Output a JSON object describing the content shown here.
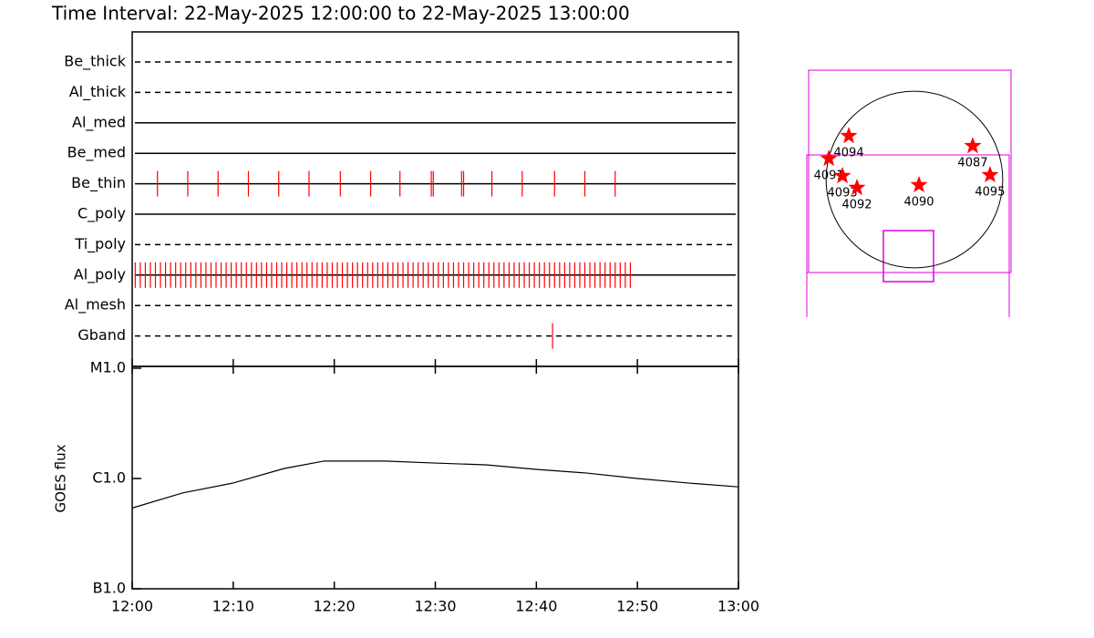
{
  "chart_data": [
    {
      "type": "timeline",
      "title": "Time Interval: 22-May-2025 12:00:00 to 22-May-2025 13:00:00",
      "categories": [
        "Be_thick",
        "Al_thick",
        "Al_med",
        "Be_med",
        "Be_thin",
        "C_poly",
        "Ti_poly",
        "Al_poly",
        "Al_mesh",
        "Gband"
      ],
      "line_styles": [
        "dashed",
        "dashed",
        "solid",
        "solid",
        "solid",
        "solid",
        "dashed",
        "solid",
        "dashed",
        "dashed"
      ],
      "color": "#ff0000",
      "xlim": [
        0,
        60
      ],
      "xticks": [
        0,
        10,
        20,
        30,
        40,
        50,
        60
      ],
      "events": [
        [],
        [],
        [],
        [],
        [
          2.5,
          5.5,
          8.5,
          11.5,
          14.5,
          17.5,
          20.6,
          23.6,
          26.5,
          29.6,
          29.8,
          32.6,
          32.8,
          35.6,
          38.6,
          41.8,
          44.8,
          47.8
        ],
        [],
        [],
        [
          0.3,
          0.8,
          1.3,
          1.8,
          2.3,
          2.8,
          3.3,
          3.8,
          4.3,
          4.8,
          5.3,
          5.8,
          6.3,
          6.8,
          7.3,
          7.8,
          8.3,
          8.8,
          9.3,
          9.8,
          10.3,
          10.8,
          11.3,
          11.8,
          12.3,
          12.8,
          13.3,
          13.8,
          14.3,
          14.8,
          15.3,
          15.8,
          16.3,
          16.8,
          17.3,
          17.8,
          18.3,
          18.8,
          19.3,
          19.8,
          20.3,
          20.8,
          21.3,
          21.8,
          22.3,
          22.8,
          23.3,
          23.8,
          24.3,
          24.8,
          25.3,
          25.8,
          26.3,
          26.8,
          27.3,
          27.8,
          28.3,
          28.8,
          29.3,
          29.8,
          30.3,
          30.8,
          31.3,
          31.8,
          32.3,
          32.8,
          33.3,
          33.8,
          34.3,
          34.8,
          35.3,
          35.8,
          36.3,
          36.8,
          37.3,
          37.8,
          38.3,
          38.8,
          39.3,
          39.8,
          40.3,
          40.8,
          41.3,
          41.8,
          42.3,
          42.8,
          43.3,
          43.8,
          44.3,
          44.8,
          45.3,
          45.8,
          46.3,
          46.8,
          47.3,
          47.8,
          48.3,
          48.8,
          49.3
        ],
        [],
        [
          41.6
        ]
      ]
    },
    {
      "type": "line",
      "ylabel": "GOES flux",
      "log_scale": true,
      "color": "#000000",
      "x": [
        0,
        5,
        10,
        15,
        19,
        25,
        30,
        35,
        40,
        45,
        50,
        55,
        60
      ],
      "values": [
        5.4e-07,
        7.4e-07,
        9.1e-07,
        1.23e-06,
        1.44e-06,
        1.44e-06,
        1.38e-06,
        1.33e-06,
        1.21e-06,
        1.12e-06,
        1e-06,
        9.1e-07,
        8.4e-07
      ],
      "xlim": [
        0,
        60
      ],
      "xticks": [
        {
          "value": 0,
          "label": "12:00"
        },
        {
          "value": 10,
          "label": "12:10"
        },
        {
          "value": 20,
          "label": "12:20"
        },
        {
          "value": 30,
          "label": "12:30"
        },
        {
          "value": 40,
          "label": "12:40"
        },
        {
          "value": 50,
          "label": "12:50"
        },
        {
          "value": 60,
          "label": "13:00"
        }
      ],
      "ylim": [
        1e-07,
        1e-05
      ],
      "yticks": [
        {
          "value": 1e-07,
          "label": "B1.0"
        },
        {
          "value": 1e-06,
          "label": "C1.0"
        },
        {
          "value": 1e-05,
          "label": "M1.0"
        }
      ]
    },
    {
      "type": "scatter",
      "marker": "star",
      "color": "#ff0000",
      "disk_radius": 960,
      "xlim": [
        -1100,
        1100
      ],
      "ylim": [
        -1100,
        1100
      ],
      "x": [
        -713,
        -930,
        -782,
        -624,
        50,
        634,
        822
      ],
      "y": [
        475,
        228,
        40,
        -89,
        -59,
        366,
        50
      ],
      "labels": [
        "4094",
        "4091",
        "4093",
        "4092",
        "4090",
        "4087",
        "4095"
      ]
    }
  ]
}
